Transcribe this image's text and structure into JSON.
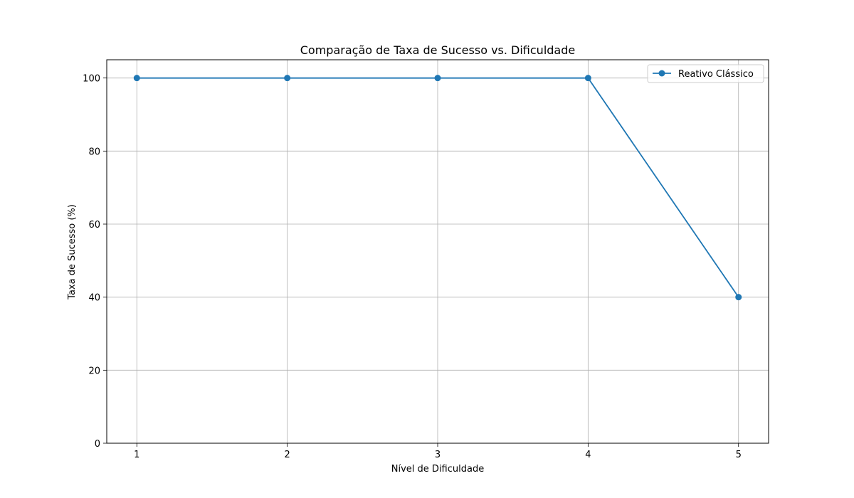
{
  "chart_data": {
    "type": "line",
    "title": "Comparação de Taxa de Sucesso vs. Dificuldade",
    "xlabel": "Nível de Dificuldade",
    "ylabel": "Taxa de Sucesso (%)",
    "x": [
      1,
      2,
      3,
      4,
      5
    ],
    "xticks": [
      1,
      2,
      3,
      4,
      5
    ],
    "yticks": [
      0,
      20,
      40,
      60,
      80,
      100
    ],
    "xlim": [
      0.8,
      5.2
    ],
    "ylim": [
      0,
      105
    ],
    "grid": true,
    "legend_position": "top-right",
    "series": [
      {
        "name": "Reativo Clássico",
        "values": [
          100,
          100,
          100,
          100,
          40
        ],
        "color": "#1f77b4",
        "marker": "circle"
      }
    ]
  }
}
